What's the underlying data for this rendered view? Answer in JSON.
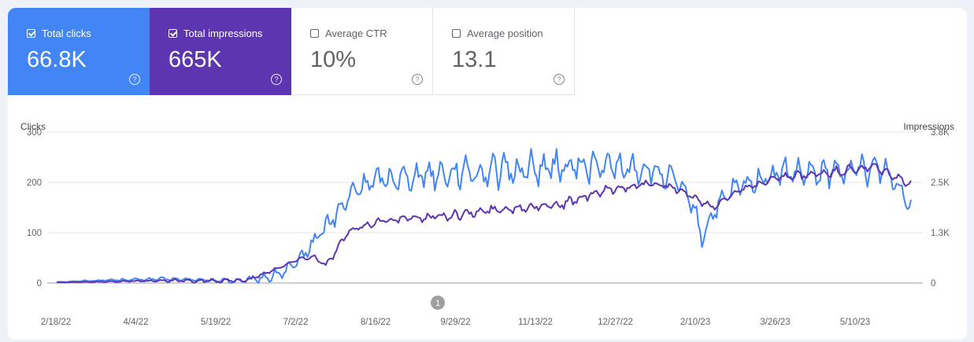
{
  "metrics": [
    {
      "label": "Total clicks",
      "value": "66.8K",
      "checked": true,
      "color": "#4285f4"
    },
    {
      "label": "Total impressions",
      "value": "665K",
      "checked": true,
      "color": "#5e35b1"
    },
    {
      "label": "Average CTR",
      "value": "10%",
      "checked": false
    },
    {
      "label": "Average position",
      "value": "13.1",
      "checked": false
    }
  ],
  "help_icon": "?",
  "chart_data": {
    "type": "line",
    "ylabel_left": "Clicks",
    "ylabel_right": "Impressions",
    "y_left_ticks": [
      "300",
      "200",
      "100",
      "0"
    ],
    "y_right_ticks": [
      "3.8K",
      "2.5K",
      "1.3K",
      "0"
    ],
    "ylim_left": [
      0,
      300
    ],
    "ylim_right": [
      0,
      3800
    ],
    "x_ticks": [
      "2/18/22",
      "4/4/22",
      "5/19/22",
      "7/2/22",
      "8/16/22",
      "9/29/22",
      "11/13/22",
      "12/27/22",
      "2/10/23",
      "3/26/23",
      "5/10/23"
    ],
    "annotation": "1",
    "grid": true,
    "series": [
      {
        "name": "Total clicks",
        "axis": "left",
        "color": "#4285f4",
        "width": 2,
        "knots": [
          [
            0,
            2
          ],
          [
            30,
            6
          ],
          [
            60,
            8
          ],
          [
            90,
            5
          ],
          [
            105,
            4
          ],
          [
            120,
            15
          ],
          [
            132,
            35
          ],
          [
            137,
            62
          ],
          [
            145,
            100
          ],
          [
            155,
            140
          ],
          [
            164,
            185
          ],
          [
            175,
            205
          ],
          [
            190,
            210
          ],
          [
            205,
            218
          ],
          [
            220,
            220
          ],
          [
            235,
            222
          ],
          [
            250,
            225
          ],
          [
            265,
            228
          ],
          [
            280,
            230
          ],
          [
            295,
            232
          ],
          [
            310,
            230
          ],
          [
            325,
            225
          ],
          [
            340,
            205
          ],
          [
            350,
            155
          ],
          [
            355,
            90
          ],
          [
            362,
            145
          ],
          [
            372,
            185
          ],
          [
            385,
            205
          ],
          [
            400,
            220
          ],
          [
            415,
            215
          ],
          [
            455,
            230
          ],
          [
            470,
            160
          ]
        ],
        "noise": [
          0.9,
          2,
          3,
          4,
          4,
          3,
          7,
          12,
          16,
          20,
          26,
          28,
          30,
          34,
          36,
          38,
          40,
          42,
          42,
          40,
          38,
          36,
          30,
          24,
          24,
          28,
          30,
          32,
          34,
          32,
          36,
          36
        ]
      },
      {
        "name": "Total impressions",
        "axis": "left",
        "color": "#5e35b1",
        "width": 2,
        "knots": [
          [
            0,
            1
          ],
          [
            60,
            5
          ],
          [
            90,
            4
          ],
          [
            105,
            6
          ],
          [
            115,
            20
          ],
          [
            125,
            35
          ],
          [
            135,
            50
          ],
          [
            142,
            52
          ],
          [
            148,
            35
          ],
          [
            152,
            55
          ],
          [
            160,
            100
          ],
          [
            170,
            115
          ],
          [
            180,
            125
          ],
          [
            200,
            130
          ],
          [
            220,
            135
          ],
          [
            240,
            145
          ],
          [
            260,
            152
          ],
          [
            280,
            158
          ],
          [
            300,
            182
          ],
          [
            320,
            195
          ],
          [
            335,
            195
          ],
          [
            345,
            180
          ],
          [
            355,
            160
          ],
          [
            362,
            150
          ],
          [
            370,
            175
          ],
          [
            385,
            195
          ],
          [
            400,
            210
          ],
          [
            415,
            215
          ],
          [
            450,
            230
          ],
          [
            465,
            205
          ],
          [
            470,
            195
          ]
        ],
        "noise": [
          0.6,
          1,
          1.5,
          3,
          4,
          5,
          5,
          4,
          3,
          6,
          8,
          9,
          9,
          10,
          11,
          12,
          13,
          12,
          13,
          12,
          11,
          10,
          9,
          8,
          9,
          10,
          11,
          11,
          12,
          12,
          10
        ]
      }
    ]
  }
}
